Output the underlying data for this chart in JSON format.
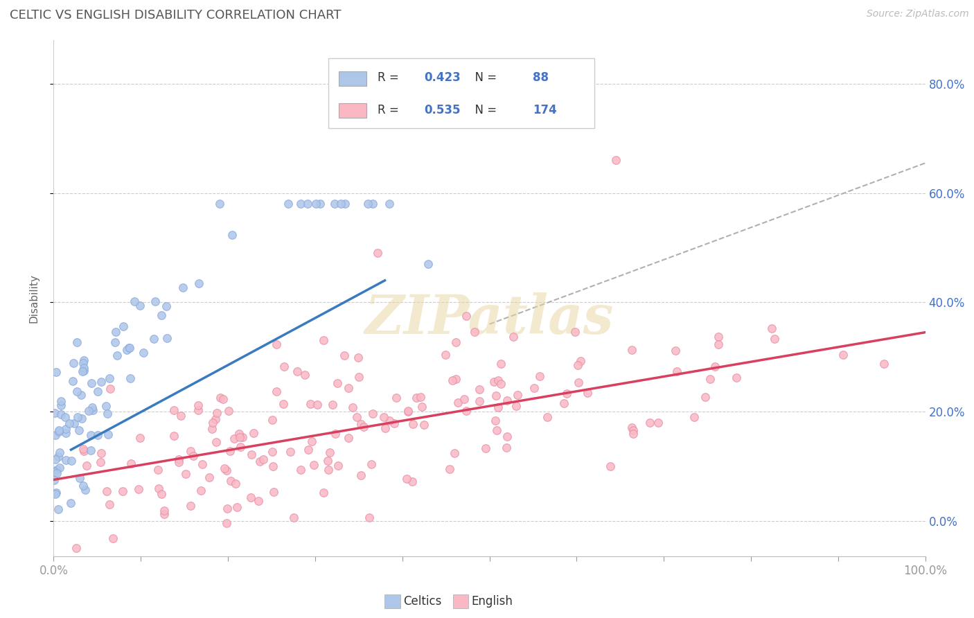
{
  "title": "CELTIC VS ENGLISH DISABILITY CORRELATION CHART",
  "source_text": "Source: ZipAtlas.com",
  "watermark": "ZIPatlas",
  "ylabel": "Disability",
  "legend_celtics": "Celtics",
  "legend_english": "English",
  "celtics_R": 0.423,
  "celtics_N": 88,
  "english_R": 0.535,
  "english_N": 174,
  "celtics_color": "#aec6e8",
  "english_color": "#f9b8c4",
  "celtics_line_color": "#3a7abf",
  "english_line_color": "#d94060",
  "dash_line_color": "#b0b0b0",
  "title_color": "#555555",
  "axis_color": "#4472c4",
  "legend_num_color": "#4472c4",
  "legend_text_color": "#333333",
  "background_color": "#ffffff",
  "grid_color": "#cccccc",
  "watermark_color": "#e8d5a0",
  "xlim": [
    0.0,
    1.0
  ],
  "ylim": [
    -0.065,
    0.88
  ],
  "yticks": [
    0.0,
    0.2,
    0.4,
    0.6,
    0.8
  ],
  "ytick_labels": [
    "0.0%",
    "20.0%",
    "40.0%",
    "60.0%",
    "80.0%"
  ],
  "figsize": [
    14.06,
    8.92
  ],
  "dpi": 100,
  "celtics_line_x0": 0.02,
  "celtics_line_y0": 0.13,
  "celtics_line_x1": 0.38,
  "celtics_line_y1": 0.44,
  "english_line_x0": 0.0,
  "english_line_y0": 0.075,
  "english_line_x1": 1.0,
  "english_line_y1": 0.345,
  "dash_line_x0": 0.5,
  "dash_line_y0": 0.36,
  "dash_line_x1": 1.0,
  "dash_line_y1": 0.655
}
